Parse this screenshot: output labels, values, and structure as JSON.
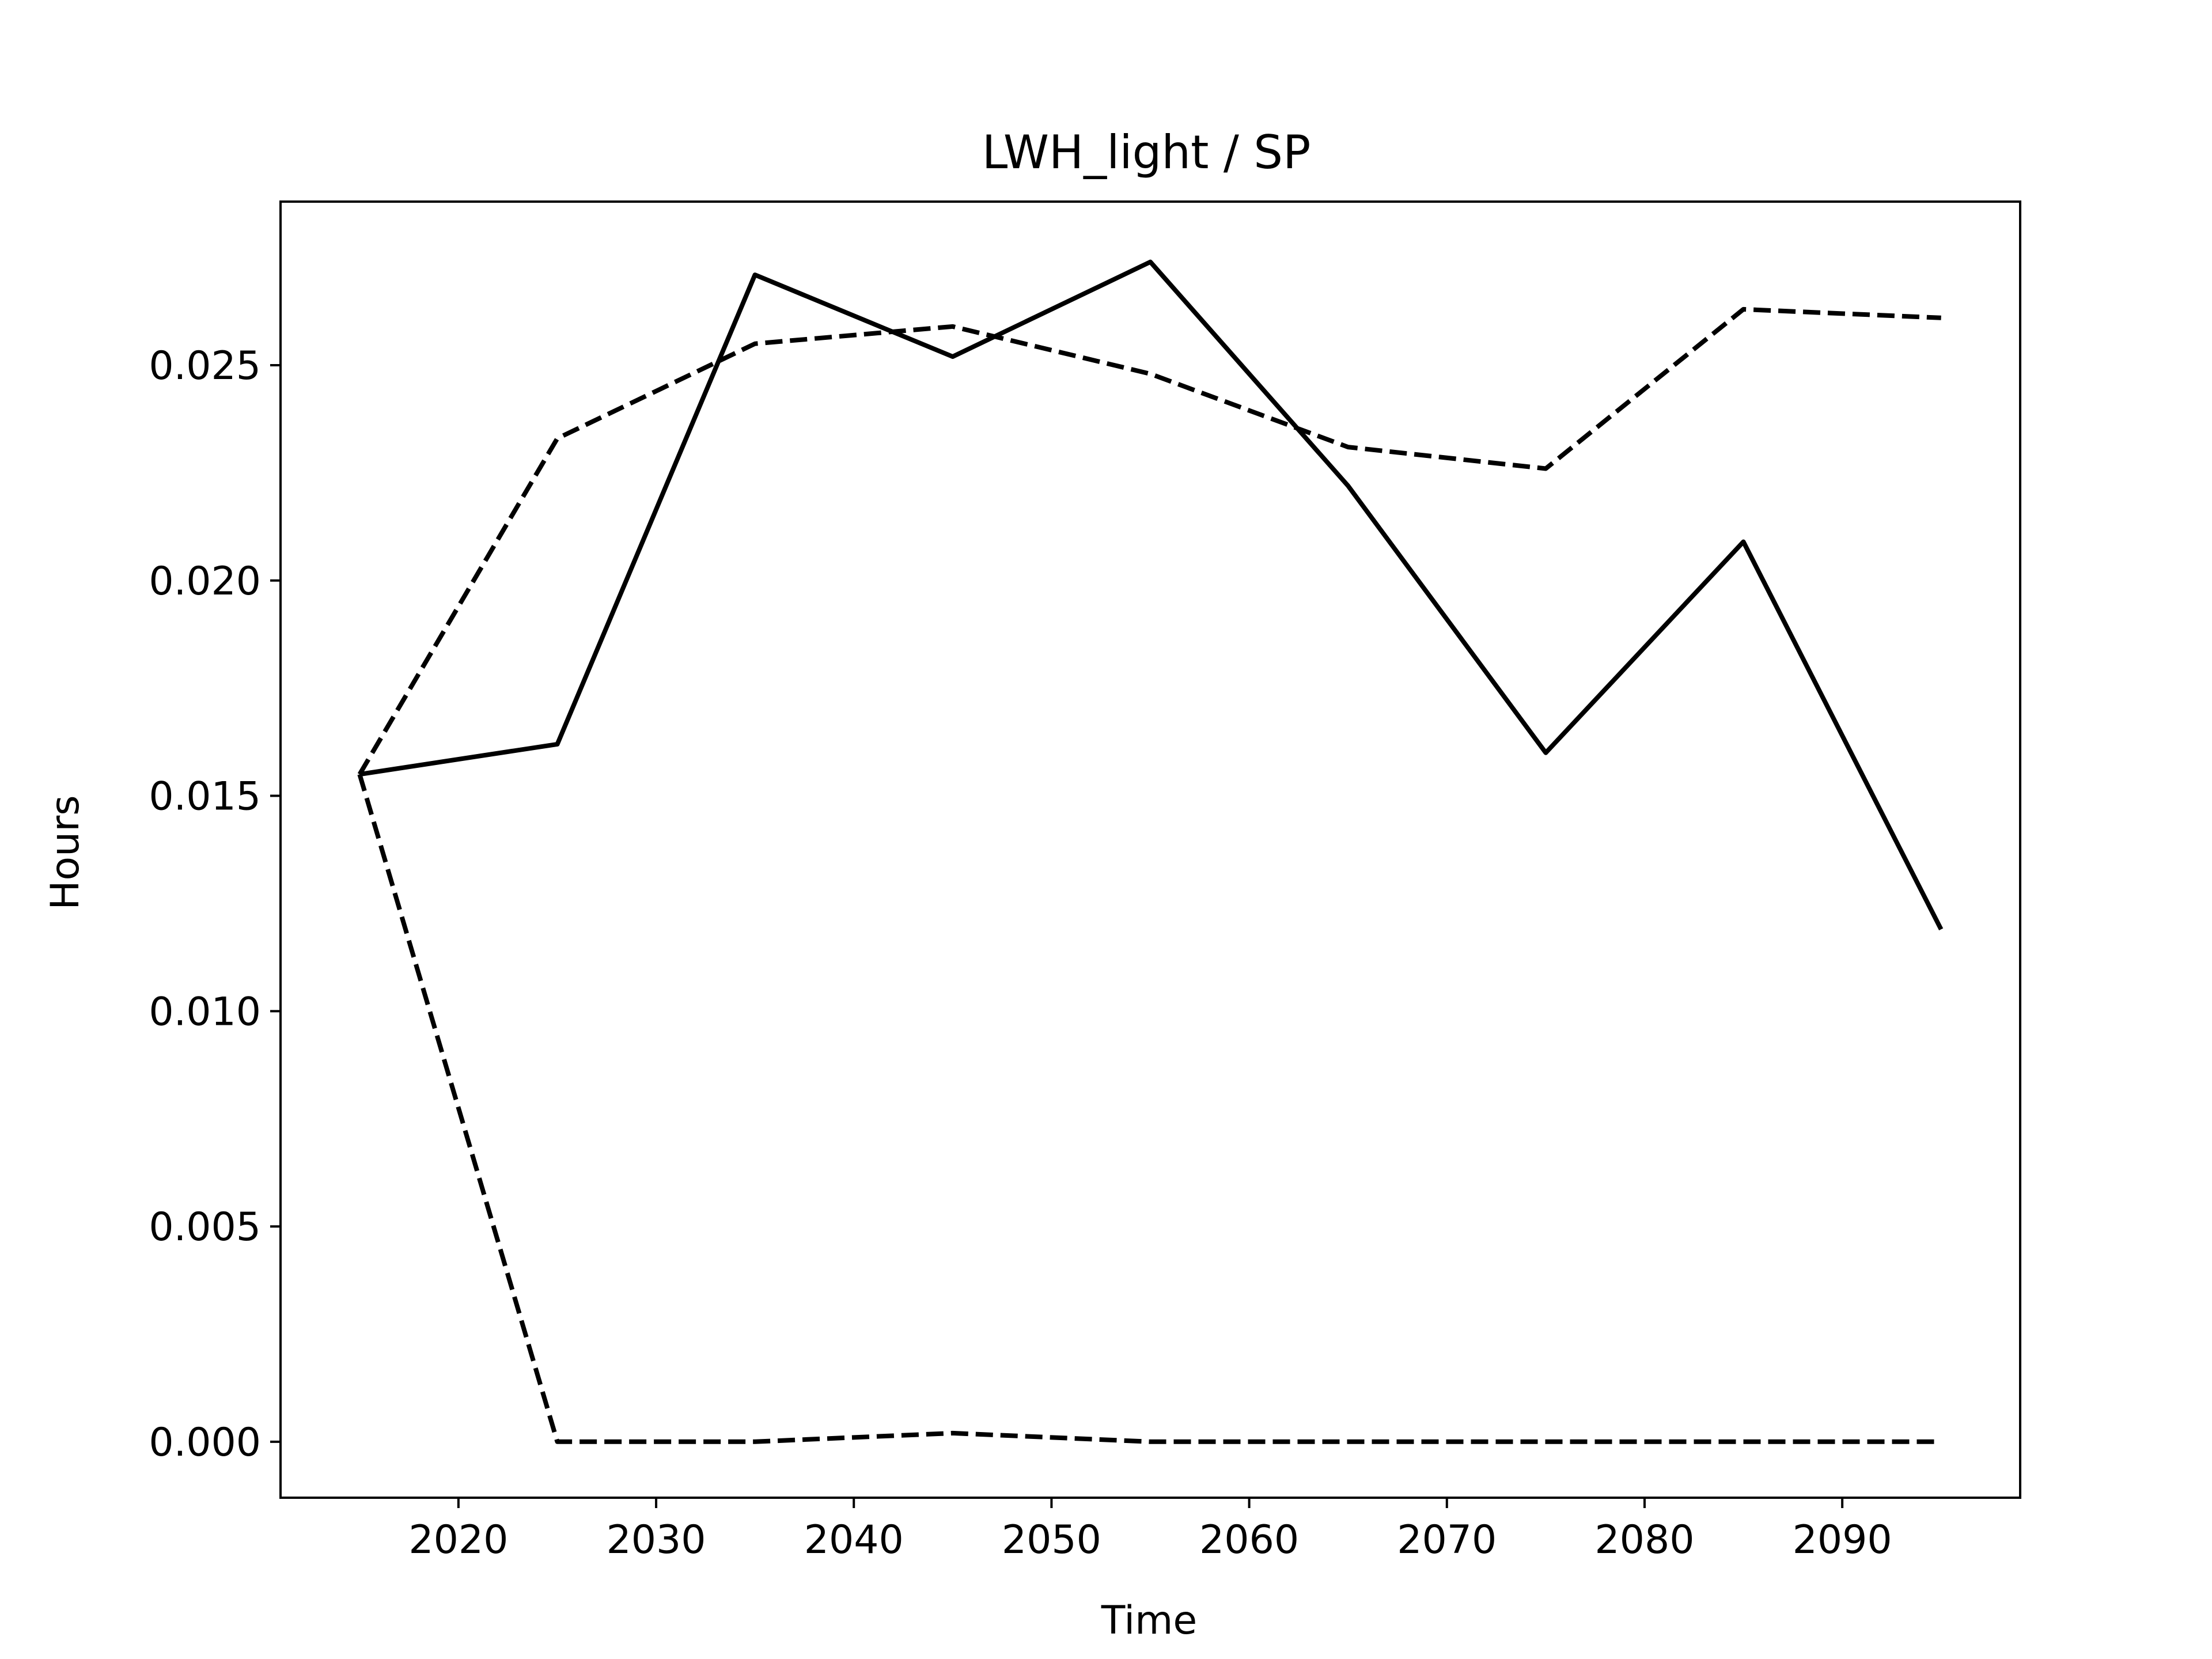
{
  "chart_data": {
    "type": "line",
    "title": "LWH_light / SP",
    "xlabel": "Time",
    "ylabel": "Hours",
    "xlim": [
      2011,
      2099
    ],
    "ylim": [
      -0.0013,
      0.0288
    ],
    "xticks": [
      2020,
      2030,
      2040,
      2050,
      2060,
      2070,
      2080,
      2090
    ],
    "xtick_labels": [
      "2020",
      "2030",
      "2040",
      "2050",
      "2060",
      "2070",
      "2080",
      "2090"
    ],
    "yticks": [
      0.0,
      0.005,
      0.01,
      0.015,
      0.02,
      0.025
    ],
    "ytick_labels": [
      "0.000",
      "0.005",
      "0.010",
      "0.015",
      "0.020",
      "0.025"
    ],
    "grid": false,
    "legend": "none",
    "line_color": "#000000",
    "series": [
      {
        "style": "solid",
        "x": [
          2015,
          2025,
          2035,
          2045,
          2055,
          2065,
          2075,
          2085,
          2095
        ],
        "y": [
          0.0155,
          0.0162,
          0.0271,
          0.0252,
          0.0274,
          0.0222,
          0.016,
          0.0209,
          0.0119
        ]
      },
      {
        "style": "dashed",
        "x": [
          2015,
          2025,
          2035,
          2045,
          2055,
          2065,
          2075,
          2085,
          2095
        ],
        "y": [
          0.0155,
          0.0233,
          0.0255,
          0.0259,
          0.0248,
          0.0231,
          0.0226,
          0.0263,
          0.0261
        ]
      },
      {
        "style": "dashed",
        "x": [
          2015,
          2025,
          2035,
          2045,
          2055,
          2065,
          2075,
          2085,
          2095
        ],
        "y": [
          0.0155,
          0.0,
          0.0,
          0.0002,
          0.0,
          0.0,
          0.0,
          0.0,
          0.0
        ]
      }
    ]
  }
}
